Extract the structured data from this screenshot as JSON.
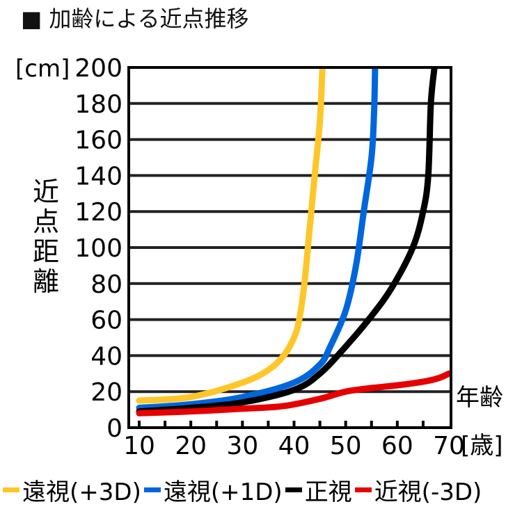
{
  "chart_data": {
    "type": "line",
    "title": "■ 加齢による近点推移",
    "ylabel": "近点距離",
    "yunit": "[cm]",
    "xlabel": "年齢",
    "xunit": "[歳]",
    "xlim": [
      10,
      70
    ],
    "ylim": [
      0,
      200
    ],
    "xticks": [
      10,
      20,
      30,
      40,
      50,
      60,
      70
    ],
    "yticks": [
      0,
      20,
      40,
      60,
      80,
      100,
      120,
      140,
      160,
      180,
      200
    ],
    "grid": "horizontal",
    "legend_position": "bottom",
    "series": [
      {
        "name": "遠視(+3D)",
        "color": "#ffc629",
        "x": [
          10,
          20,
          30,
          35,
          38,
          40,
          41,
          42,
          43,
          44,
          45,
          45.5
        ],
        "y": [
          15,
          17,
          25,
          32,
          40,
          50,
          60,
          80,
          110,
          140,
          170,
          200
        ]
      },
      {
        "name": "遠視(+1D)",
        "color": "#0066dd",
        "x": [
          10,
          20,
          30,
          40,
          45,
          47,
          50,
          52,
          53.5,
          55,
          55.5,
          55.7
        ],
        "y": [
          11,
          13,
          17,
          25,
          35,
          45,
          65,
          90,
          120,
          150,
          175,
          200
        ]
      },
      {
        "name": "正視",
        "color": "#000000",
        "x": [
          10,
          20,
          30,
          40,
          45,
          50,
          55,
          59,
          63,
          65,
          66,
          66.5,
          67.2
        ],
        "y": [
          9,
          11,
          14,
          21,
          30,
          45,
          62,
          78,
          100,
          120,
          140,
          180,
          200
        ]
      },
      {
        "name": "近視(-3D)",
        "color": "#e60000",
        "x": [
          10,
          20,
          30,
          38,
          45,
          50,
          55,
          60,
          65,
          68,
          70
        ],
        "y": [
          8,
          9,
          10.5,
          12,
          16,
          20,
          22,
          23.5,
          25.5,
          27.5,
          30
        ]
      }
    ]
  }
}
